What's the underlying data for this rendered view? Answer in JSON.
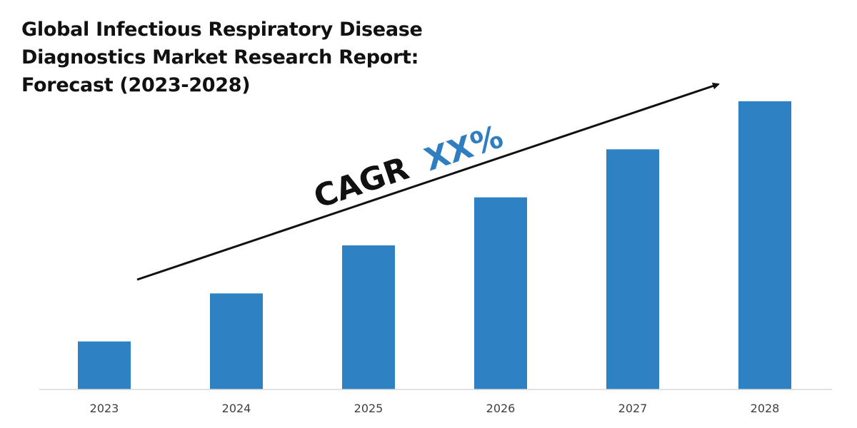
{
  "title_lines": [
    "Global Infectious Respiratory Disease",
    "Diagnostics Market Research Report:",
    "Forecast (2023-2028)"
  ],
  "cagr": {
    "label": "CAGR",
    "value": "XX%",
    "label_color": "#111111",
    "value_color": "#2E7EC1"
  },
  "colors": {
    "bar": "#2E82C4",
    "axis": "#D9D9D9",
    "arrow": "#111111"
  },
  "chart_data": {
    "type": "bar",
    "title": "Global Infectious Respiratory Disease Diagnostics Market Research Report: Forecast (2023-2028)",
    "categories": [
      "2023",
      "2024",
      "2025",
      "2026",
      "2027",
      "2028"
    ],
    "values": [
      1,
      2,
      3,
      4,
      5,
      6
    ],
    "ylim": [
      0,
      6
    ],
    "grid": false,
    "legend": "none",
    "annotations": [
      "CAGR XX%"
    ]
  }
}
